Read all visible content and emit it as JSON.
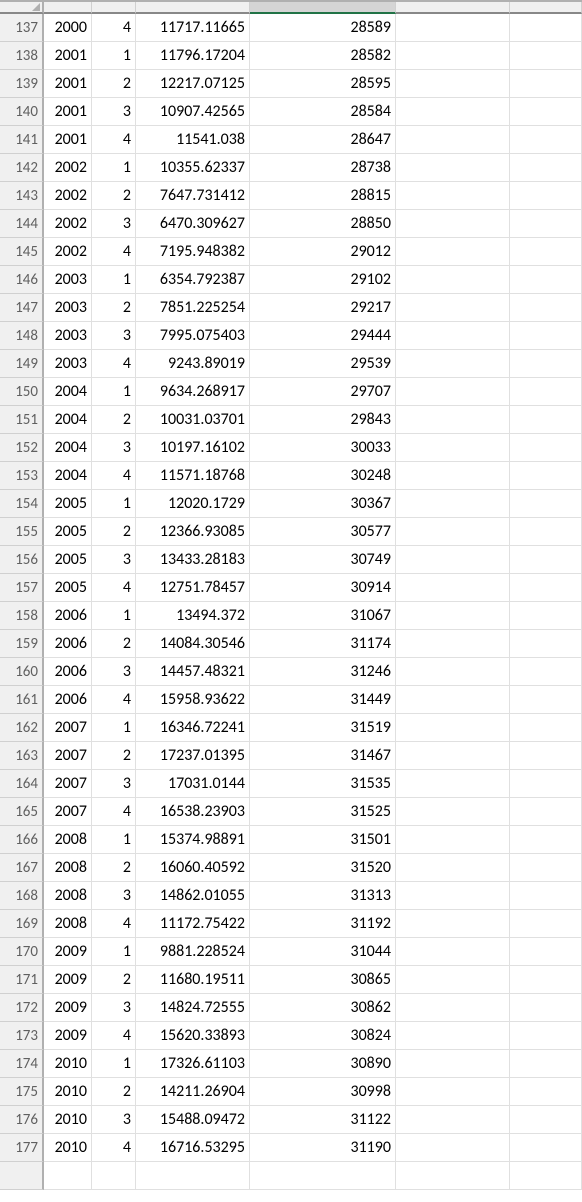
{
  "col_headers": [
    "",
    "",
    "",
    "",
    "",
    ""
  ],
  "selected_col_index": 3,
  "rows": [
    {
      "n": 137,
      "a": 2000,
      "b": 4,
      "c": "11717.11665",
      "d": 28589
    },
    {
      "n": 138,
      "a": 2001,
      "b": 1,
      "c": "11796.17204",
      "d": 28582
    },
    {
      "n": 139,
      "a": 2001,
      "b": 2,
      "c": "12217.07125",
      "d": 28595
    },
    {
      "n": 140,
      "a": 2001,
      "b": 3,
      "c": "10907.42565",
      "d": 28584
    },
    {
      "n": 141,
      "a": 2001,
      "b": 4,
      "c": "11541.038",
      "d": 28647
    },
    {
      "n": 142,
      "a": 2002,
      "b": 1,
      "c": "10355.62337",
      "d": 28738
    },
    {
      "n": 143,
      "a": 2002,
      "b": 2,
      "c": "7647.731412",
      "d": 28815
    },
    {
      "n": 144,
      "a": 2002,
      "b": 3,
      "c": "6470.309627",
      "d": 28850
    },
    {
      "n": 145,
      "a": 2002,
      "b": 4,
      "c": "7195.948382",
      "d": 29012
    },
    {
      "n": 146,
      "a": 2003,
      "b": 1,
      "c": "6354.792387",
      "d": 29102
    },
    {
      "n": 147,
      "a": 2003,
      "b": 2,
      "c": "7851.225254",
      "d": 29217
    },
    {
      "n": 148,
      "a": 2003,
      "b": 3,
      "c": "7995.075403",
      "d": 29444
    },
    {
      "n": 149,
      "a": 2003,
      "b": 4,
      "c": "9243.89019",
      "d": 29539
    },
    {
      "n": 150,
      "a": 2004,
      "b": 1,
      "c": "9634.268917",
      "d": 29707
    },
    {
      "n": 151,
      "a": 2004,
      "b": 2,
      "c": "10031.03701",
      "d": 29843
    },
    {
      "n": 152,
      "a": 2004,
      "b": 3,
      "c": "10197.16102",
      "d": 30033
    },
    {
      "n": 153,
      "a": 2004,
      "b": 4,
      "c": "11571.18768",
      "d": 30248
    },
    {
      "n": 154,
      "a": 2005,
      "b": 1,
      "c": "12020.1729",
      "d": 30367
    },
    {
      "n": 155,
      "a": 2005,
      "b": 2,
      "c": "12366.93085",
      "d": 30577
    },
    {
      "n": 156,
      "a": 2005,
      "b": 3,
      "c": "13433.28183",
      "d": 30749
    },
    {
      "n": 157,
      "a": 2005,
      "b": 4,
      "c": "12751.78457",
      "d": 30914
    },
    {
      "n": 158,
      "a": 2006,
      "b": 1,
      "c": "13494.372",
      "d": 31067
    },
    {
      "n": 159,
      "a": 2006,
      "b": 2,
      "c": "14084.30546",
      "d": 31174
    },
    {
      "n": 160,
      "a": 2006,
      "b": 3,
      "c": "14457.48321",
      "d": 31246
    },
    {
      "n": 161,
      "a": 2006,
      "b": 4,
      "c": "15958.93622",
      "d": 31449
    },
    {
      "n": 162,
      "a": 2007,
      "b": 1,
      "c": "16346.72241",
      "d": 31519
    },
    {
      "n": 163,
      "a": 2007,
      "b": 2,
      "c": "17237.01395",
      "d": 31467
    },
    {
      "n": 164,
      "a": 2007,
      "b": 3,
      "c": "17031.0144",
      "d": 31535
    },
    {
      "n": 165,
      "a": 2007,
      "b": 4,
      "c": "16538.23903",
      "d": 31525
    },
    {
      "n": 166,
      "a": 2008,
      "b": 1,
      "c": "15374.98891",
      "d": 31501
    },
    {
      "n": 167,
      "a": 2008,
      "b": 2,
      "c": "16060.40592",
      "d": 31520
    },
    {
      "n": 168,
      "a": 2008,
      "b": 3,
      "c": "14862.01055",
      "d": 31313
    },
    {
      "n": 169,
      "a": 2008,
      "b": 4,
      "c": "11172.75422",
      "d": 31192
    },
    {
      "n": 170,
      "a": 2009,
      "b": 1,
      "c": "9881.228524",
      "d": 31044
    },
    {
      "n": 171,
      "a": 2009,
      "b": 2,
      "c": "11680.19511",
      "d": 30865
    },
    {
      "n": 172,
      "a": 2009,
      "b": 3,
      "c": "14824.72555",
      "d": 30862
    },
    {
      "n": 173,
      "a": 2009,
      "b": 4,
      "c": "15620.33893",
      "d": 30824
    },
    {
      "n": 174,
      "a": 2010,
      "b": 1,
      "c": "17326.61103",
      "d": 30890
    },
    {
      "n": 175,
      "a": 2010,
      "b": 2,
      "c": "14211.26904",
      "d": 30998
    },
    {
      "n": 176,
      "a": 2010,
      "b": 3,
      "c": "15488.09472",
      "d": 31122
    },
    {
      "n": 177,
      "a": 2010,
      "b": 4,
      "c": "16716.53295",
      "d": 31190
    }
  ],
  "grid_border": "#e0e0e0",
  "row_header_color": "#606060",
  "row_header_bg": "#f0f0f0"
}
